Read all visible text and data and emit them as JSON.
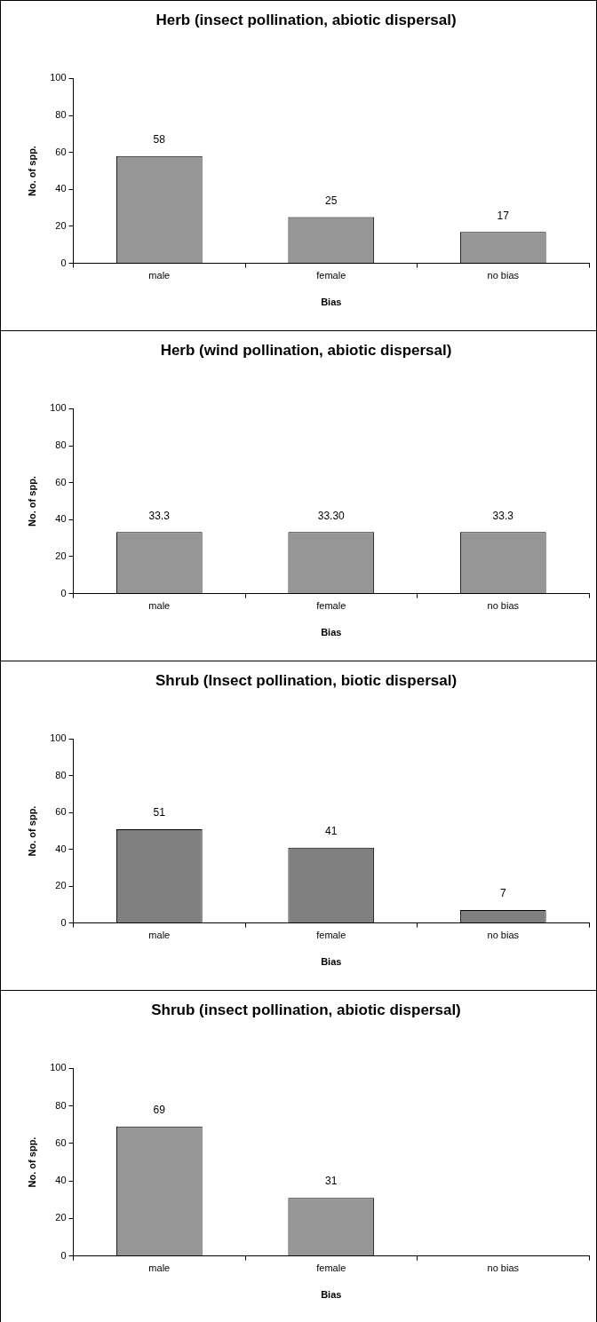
{
  "chart_data": [
    {
      "type": "bar",
      "title": "Herb (insect pollination, abiotic dispersal)",
      "xlabel": "Bias",
      "ylabel": "No. of spp.",
      "categories": [
        "male",
        "female",
        "no bias"
      ],
      "values": [
        58,
        25,
        17
      ],
      "color": "#969696",
      "ylim": [
        0,
        100
      ],
      "yticks": [
        0,
        20,
        40,
        60,
        80,
        100
      ],
      "data_labels": true
    },
    {
      "type": "bar",
      "title": "Herb (wind pollination, abiotic dispersal)",
      "xlabel": "Bias",
      "ylabel": "No. of spp.",
      "categories": [
        "male",
        "female",
        "no bias"
      ],
      "values": [
        33.3,
        33.3,
        33.3
      ],
      "value_labels": [
        "33.3",
        "33.30",
        "33.3"
      ],
      "color": "#969696",
      "ylim": [
        0,
        100
      ],
      "yticks": [
        0,
        20,
        40,
        60,
        80,
        100
      ]
    },
    {
      "type": "bar",
      "title": "Shrub (Insect pollination, biotic dispersal)",
      "xlabel": "Bias",
      "ylabel": "No. of spp.",
      "categories": [
        "male",
        "female",
        "no bias"
      ],
      "values": [
        51,
        41,
        7
      ],
      "color": "#808080",
      "ylim": [
        0,
        100
      ],
      "yticks": [
        0,
        20,
        40,
        60,
        80,
        100
      ],
      "data_labels": true
    },
    {
      "type": "bar",
      "title": "Shrub (insect pollination, abiotic dispersal)",
      "xlabel": "Bias",
      "ylabel": "No. of spp.",
      "categories": [
        "male",
        "female",
        "no bias"
      ],
      "values": [
        69,
        31,
        0
      ],
      "value_labels": [
        "69",
        "31",
        null
      ],
      "color": "#969696",
      "ylim": [
        0,
        100
      ],
      "yticks": [
        0,
        20,
        40,
        60,
        80,
        100
      ]
    }
  ]
}
